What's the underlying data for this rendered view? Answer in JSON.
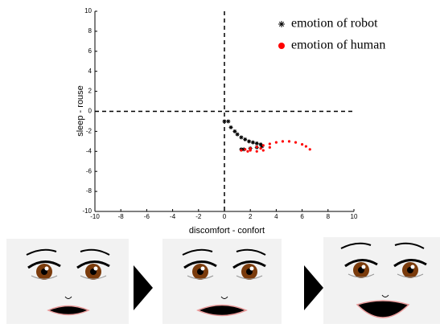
{
  "chart_data": {
    "type": "scatter",
    "xlabel": "discomfort - confort",
    "ylabel": "sleep - rouse",
    "xlim": [
      -10,
      10
    ],
    "ylim": [
      -10,
      10
    ],
    "xticks": [
      -10,
      -8,
      -6,
      -4,
      -2,
      0,
      2,
      4,
      6,
      8,
      10
    ],
    "yticks": [
      -10,
      -8,
      -6,
      -4,
      -2,
      0,
      2,
      4,
      6,
      8,
      10
    ],
    "grid": false,
    "legend": "upper right",
    "series": [
      {
        "name": "emotion of robot",
        "color": "#000000",
        "marker": "asterisk",
        "x": [
          0,
          0.3,
          0.5,
          0.8,
          1.0,
          1.3,
          1.6,
          1.9,
          2.2,
          2.5,
          2.8,
          2.9,
          2.5,
          2.0,
          1.5,
          1.3
        ],
        "y": [
          -1.0,
          -1.0,
          -1.6,
          -2.0,
          -2.3,
          -2.6,
          -2.8,
          -3.0,
          -3.1,
          -3.2,
          -3.3,
          -3.5,
          -3.6,
          -3.7,
          -3.8,
          -3.8
        ]
      },
      {
        "name": "emotion of human",
        "color": "#ff0000",
        "marker": "circle",
        "x": [
          1.3,
          1.6,
          2.0,
          2.5,
          3.0,
          3.5,
          4.0,
          4.5,
          5.0,
          5.5,
          6.0,
          6.3,
          6.6,
          2.0,
          2.5,
          3.0,
          3.5,
          1.8,
          2.8
        ],
        "y": [
          -3.9,
          -3.8,
          -3.7,
          -3.55,
          -3.4,
          -3.25,
          -3.1,
          -3.0,
          -3.0,
          -3.1,
          -3.3,
          -3.5,
          -3.8,
          -3.9,
          -4.0,
          -3.9,
          -3.6,
          -4.0,
          -3.7
        ]
      }
    ]
  }
}
